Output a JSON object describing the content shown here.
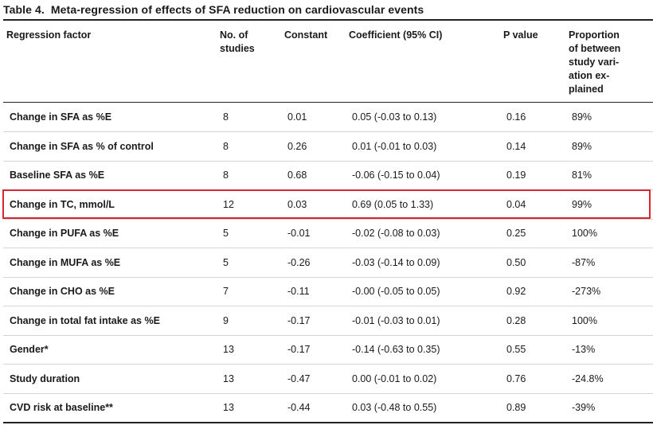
{
  "caption": {
    "number": "Table 4.",
    "title": "Meta-regression of effects of SFA reduction on cardiovascular events"
  },
  "headers": {
    "factor": [
      "Regression factor"
    ],
    "studies": [
      "No. of",
      "studies"
    ],
    "constant": [
      "Constant"
    ],
    "coefficient": [
      "Coefficient (95% CI)"
    ],
    "pvalue": [
      "P value"
    ],
    "proportion": [
      "Proportion",
      "of between",
      "study vari-",
      "ation ex-",
      "plained"
    ]
  },
  "rows": [
    {
      "factor": "Change in SFA as %E",
      "studies": "8",
      "constant": "0.01",
      "coefficient": "0.05 (-0.03 to 0.13)",
      "pvalue": "0.16",
      "proportion": "89%"
    },
    {
      "factor": "Change in SFA as % of control",
      "studies": "8",
      "constant": "0.26",
      "coefficient": "0.01 (-0.01 to 0.03)",
      "pvalue": "0.14",
      "proportion": "89%"
    },
    {
      "factor": "Baseline SFA as %E",
      "studies": "8",
      "constant": "0.68",
      "coefficient": "-0.06 (-0.15 to 0.04)",
      "pvalue": "0.19",
      "proportion": "81%"
    },
    {
      "factor": "Change in TC, mmol/L",
      "studies": "12",
      "constant": "0.03",
      "coefficient": "0.69 (0.05 to 1.33)",
      "pvalue": "0.04",
      "proportion": "99%"
    },
    {
      "factor": "Change in PUFA as %E",
      "studies": "5",
      "constant": "-0.01",
      "coefficient": "-0.02 (-0.08 to 0.03)",
      "pvalue": "0.25",
      "proportion": "100%"
    },
    {
      "factor": "Change in MUFA as %E",
      "studies": "5",
      "constant": "-0.26",
      "coefficient": "-0.03 (-0.14 to 0.09)",
      "pvalue": "0.50",
      "proportion": "-87%"
    },
    {
      "factor": "Change in CHO as %E",
      "studies": "7",
      "constant": "-0.11",
      "coefficient": "-0.00 (-0.05 to 0.05)",
      "pvalue": "0.92",
      "proportion": "-273%"
    },
    {
      "factor": "Change in total fat intake as %E",
      "studies": "9",
      "constant": "-0.17",
      "coefficient": "-0.01 (-0.03 to 0.01)",
      "pvalue": "0.28",
      "proportion": "100%"
    },
    {
      "factor": "Gender*",
      "studies": "13",
      "constant": "-0.17",
      "coefficient": "-0.14 (-0.63 to 0.35)",
      "pvalue": "0.55",
      "proportion": "-13%"
    },
    {
      "factor": "Study duration",
      "studies": "13",
      "constant": "-0.47",
      "coefficient": "0.00 (-0.01 to 0.02)",
      "pvalue": "0.76",
      "proportion": "-24.8%"
    },
    {
      "factor": "CVD risk at baseline**",
      "studies": "13",
      "constant": "-0.44",
      "coefficient": "0.03 (-0.48 to 0.55)",
      "pvalue": "0.89",
      "proportion": "-39%"
    }
  ],
  "highlight_color": "#d8262e"
}
